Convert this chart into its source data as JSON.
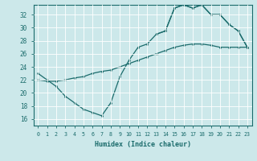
{
  "xlabel": "Humidex (Indice chaleur)",
  "xlim": [
    -0.5,
    23.5
  ],
  "ylim": [
    15.0,
    33.5
  ],
  "xticks": [
    0,
    1,
    2,
    3,
    4,
    5,
    6,
    7,
    8,
    9,
    10,
    11,
    12,
    13,
    14,
    15,
    16,
    17,
    18,
    19,
    20,
    21,
    22,
    23
  ],
  "yticks": [
    16,
    18,
    20,
    22,
    24,
    26,
    28,
    30,
    32
  ],
  "bg_color": "#cce8ea",
  "line_color": "#1a6b6b",
  "grid_color": "#ffffff",
  "curve_dip_x": [
    0,
    1,
    2,
    3,
    4,
    5,
    6,
    7,
    8,
    9,
    10,
    11,
    12,
    13,
    14,
    15,
    16,
    17,
    18,
    19,
    20,
    21,
    22,
    23
  ],
  "curve_dip_y": [
    23.0,
    22.0,
    21.0,
    19.5,
    18.5,
    17.5,
    17.0,
    16.5,
    18.5,
    22.5,
    25.0,
    27.0,
    27.5,
    29.0,
    29.5,
    33.0,
    33.5,
    33.0,
    33.5,
    32.0,
    32.0,
    30.5,
    29.5,
    27.0
  ],
  "curve_diagonal_x": [
    0,
    1,
    2,
    3,
    4,
    5,
    6,
    7,
    8,
    9,
    10,
    11,
    12,
    13,
    14,
    15,
    16,
    17,
    18,
    19,
    20,
    21,
    22,
    23
  ],
  "curve_diagonal_y": [
    22.0,
    21.8,
    21.8,
    22.0,
    22.3,
    22.5,
    23.0,
    23.3,
    23.5,
    24.0,
    24.5,
    25.0,
    25.5,
    26.0,
    26.5,
    27.0,
    27.3,
    27.5,
    27.5,
    27.3,
    27.0,
    27.0,
    27.0,
    27.0
  ],
  "curve_peak_x": [
    13,
    14,
    15,
    16,
    17,
    18,
    19,
    20,
    21,
    22,
    23
  ],
  "curve_peak_y": [
    29.0,
    29.5,
    33.0,
    33.5,
    33.0,
    33.5,
    32.0,
    32.0,
    30.5,
    29.5,
    27.0
  ]
}
